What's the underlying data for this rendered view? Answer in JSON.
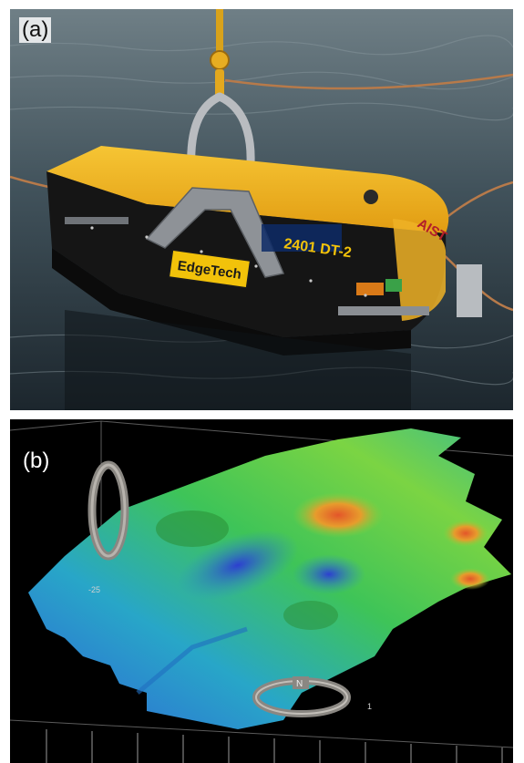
{
  "figure": {
    "panel_a": {
      "label": "(a)",
      "brand_text": "EdgeTech",
      "logo_text": "AIST",
      "model_text": "2401 DT-2"
    },
    "panel_b": {
      "label": "(b)",
      "depth_label": "-25",
      "compass_letter": "N",
      "scale_mark": "1"
    },
    "colors": {
      "sonar_yellow": "#f2b21c",
      "sea_dark": "#1f2a33",
      "map_deep": "#2d58d8",
      "map_mid": "#33c25a",
      "map_high": "#e58a22"
    }
  }
}
